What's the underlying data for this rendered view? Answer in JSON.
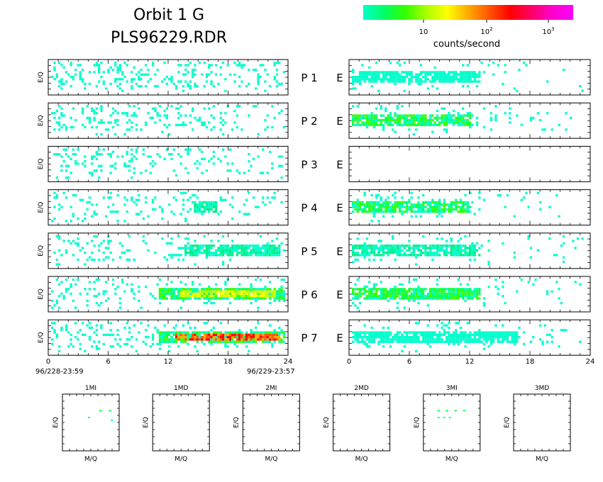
{
  "header": {
    "title_line1": "Orbit 1 G",
    "title_line2": "PLS96229.RDR"
  },
  "colorbar": {
    "label": "counts/second",
    "ticks": [
      {
        "base": "10",
        "exp": ""
      },
      {
        "base": "10",
        "exp": "2"
      },
      {
        "base": "10",
        "exp": "3"
      }
    ],
    "stops": [
      "#00ffcc",
      "#00ff66",
      "#33ff00",
      "#aaff00",
      "#ffff00",
      "#ffaa00",
      "#ff5500",
      "#ff0000",
      "#ff0066",
      "#ff00cc",
      "#ff00ff"
    ]
  },
  "chart_data": [
    {
      "type": "heatmap",
      "description_key": "time-energy spectrograms, P side",
      "ylabel": "E/Q",
      "x_ticks": [
        "0",
        "6",
        "12",
        "18",
        "24"
      ],
      "xlim": [
        0,
        24
      ],
      "start_label": "96/228-23:59",
      "end_label": "96/229-23:57",
      "panels": [
        {
          "label": "P 1",
          "noise": 0.28,
          "bands": []
        },
        {
          "label": "P 2",
          "noise": 0.22,
          "bands": []
        },
        {
          "label": "P 3",
          "noise": 0.2,
          "bands": []
        },
        {
          "label": "P 4",
          "noise": 0.14,
          "bands": [
            {
              "x0": 14.5,
              "x1": 17,
              "level": 1
            }
          ]
        },
        {
          "label": "P 5",
          "noise": 0.14,
          "bands": [
            {
              "x0": 13.5,
              "x1": 23.5,
              "level": 1
            }
          ]
        },
        {
          "label": "P 6",
          "noise": 0.16,
          "bands": [
            {
              "x0": 11,
              "x1": 24,
              "level": 2
            },
            {
              "x0": 13,
              "x1": 23,
              "level": 3
            }
          ]
        },
        {
          "label": "P 7",
          "noise": 0.2,
          "bands": [
            {
              "x0": 11,
              "x1": 24,
              "level": 2
            },
            {
              "x0": 12.5,
              "x1": 23.5,
              "level": 4
            }
          ]
        }
      ]
    },
    {
      "type": "heatmap",
      "description_key": "time-energy spectrograms, E side",
      "x_ticks": [
        "0",
        "6",
        "12",
        "18",
        "24"
      ],
      "xlim": [
        0,
        24
      ],
      "panels": [
        {
          "label": "E",
          "noise": 0.08,
          "bands": [
            {
              "x0": 0,
              "x1": 13,
              "level": 0
            }
          ]
        },
        {
          "label": "E",
          "noise": 0.1,
          "bands": [
            {
              "x0": 0,
              "x1": 12,
              "level": 2
            }
          ]
        },
        {
          "label": "E",
          "noise": 0,
          "bands": []
        },
        {
          "label": "E",
          "noise": 0.12,
          "bands": [
            {
              "x0": 0,
              "x1": 12,
              "level": 2
            }
          ]
        },
        {
          "label": "E",
          "noise": 0.12,
          "bands": [
            {
              "x0": 0,
              "x1": 13,
              "level": 1
            }
          ]
        },
        {
          "label": "E",
          "noise": 0.14,
          "bands": [
            {
              "x0": 0,
              "x1": 13,
              "level": 2
            }
          ]
        },
        {
          "label": "E",
          "noise": 0.14,
          "bands": [
            {
              "x0": 0,
              "x1": 17,
              "level": 0
            }
          ]
        }
      ]
    },
    {
      "type": "scatter",
      "description_key": "mass-per-charge panels",
      "xlabel": "M/Q",
      "ylabel": "E/Q",
      "panels": [
        {
          "title": "1MI",
          "points": [
            [
              0.65,
              0.72
            ],
            [
              0.82,
              0.72
            ],
            [
              0.85,
              0.55
            ],
            [
              0.45,
              0.6
            ]
          ]
        },
        {
          "title": "1MD",
          "points": []
        },
        {
          "title": "2MI",
          "points": []
        },
        {
          "title": "2MD",
          "points": []
        },
        {
          "title": "3MI",
          "points": [
            [
              0.25,
              0.72
            ],
            [
              0.4,
              0.72
            ],
            [
              0.55,
              0.72
            ],
            [
              0.7,
              0.72
            ],
            [
              0.25,
              0.6
            ],
            [
              0.35,
              0.6
            ],
            [
              0.45,
              0.6
            ]
          ]
        },
        {
          "title": "3MD",
          "points": []
        }
      ]
    }
  ]
}
